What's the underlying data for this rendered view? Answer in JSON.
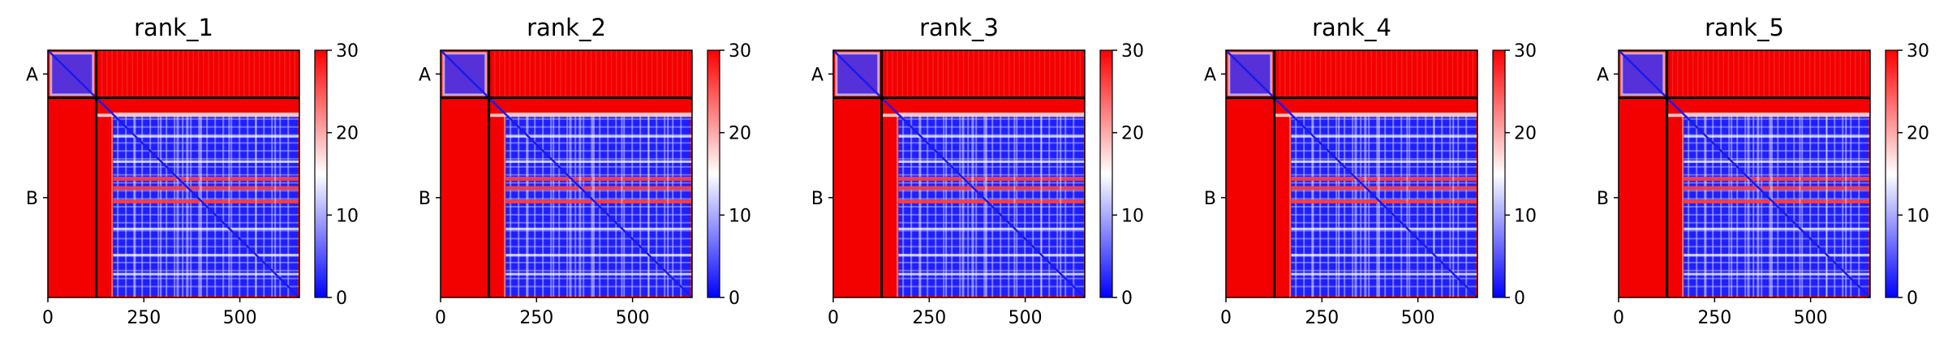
{
  "chart_data": {
    "type": "heatmap",
    "description_colors": {
      "low": "#0000ff",
      "mid": "#ffffff",
      "high": "#ff0000"
    },
    "colorbar": {
      "min": 0,
      "max": 30,
      "ticks": [
        "0",
        "10",
        "20",
        "30"
      ]
    },
    "x_ticks": [
      {
        "value": 0,
        "label": "0"
      },
      {
        "value": 250,
        "label": "250"
      },
      {
        "value": 500,
        "label": "500"
      }
    ],
    "x_range": [
      0,
      655
    ],
    "chains": [
      {
        "label": "A",
        "start": 0,
        "end": 126
      },
      {
        "label": "B",
        "start": 126,
        "end": 655
      }
    ],
    "stripe_rows": [
      165,
      225,
      292,
      335,
      360,
      395,
      470,
      540,
      590
    ],
    "panels": [
      {
        "title": "rank_1"
      },
      {
        "title": "rank_2"
      },
      {
        "title": "rank_3"
      },
      {
        "title": "rank_4"
      },
      {
        "title": "rank_5"
      }
    ]
  }
}
